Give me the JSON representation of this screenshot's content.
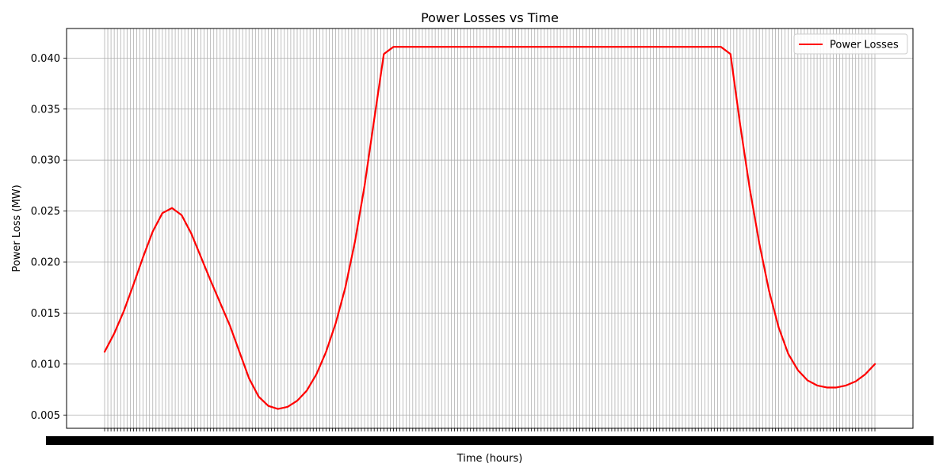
{
  "chart_data": {
    "type": "line",
    "title": "Power Losses vs Time",
    "xlabel": "Time (hours)",
    "ylabel": "Power Loss (MW)",
    "ylim": [
      0.0037,
      0.0429
    ],
    "yticks": [
      "0.005",
      "0.010",
      "0.015",
      "0.020",
      "0.025",
      "0.030",
      "0.035",
      "0.040"
    ],
    "grid": true,
    "legend_position": "top-right",
    "x_tick_count": 240,
    "series": [
      {
        "name": "Power Losses",
        "color": "#ff0000",
        "x": [
          0,
          12,
          24,
          36,
          48,
          60,
          72,
          84,
          96,
          108,
          120,
          132,
          144,
          156,
          168,
          180,
          192,
          204,
          216,
          228,
          240,
          252,
          264,
          276,
          288,
          300,
          312,
          324,
          336,
          348,
          360,
          372,
          384,
          396,
          408,
          420,
          432,
          444,
          456,
          468,
          480,
          492,
          504,
          516,
          528,
          540,
          552,
          564,
          576,
          588,
          600,
          612,
          624,
          636,
          648,
          660,
          672,
          684,
          696,
          708,
          720,
          732,
          744,
          756,
          768,
          780,
          792,
          804,
          816,
          828,
          840,
          852,
          864,
          876,
          888,
          900,
          912,
          924,
          936,
          948,
          960
        ],
        "values": [
          0.0112,
          0.013,
          0.0152,
          0.0178,
          0.0205,
          0.023,
          0.0248,
          0.0253,
          0.0246,
          0.0228,
          0.0205,
          0.0182,
          0.016,
          0.0138,
          0.0112,
          0.0086,
          0.0068,
          0.0059,
          0.0056,
          0.0058,
          0.0064,
          0.0074,
          0.009,
          0.0112,
          0.014,
          0.0175,
          0.022,
          0.0275,
          0.034,
          0.0404,
          0.0411,
          0.0411,
          0.0411,
          0.0411,
          0.0411,
          0.0411,
          0.0411,
          0.0411,
          0.0411,
          0.0411,
          0.0411,
          0.0411,
          0.0411,
          0.0411,
          0.0411,
          0.0411,
          0.0411,
          0.0411,
          0.0411,
          0.0411,
          0.0411,
          0.0411,
          0.0411,
          0.0411,
          0.0411,
          0.0411,
          0.0411,
          0.0411,
          0.0411,
          0.0411,
          0.0411,
          0.0411,
          0.0411,
          0.0411,
          0.0411,
          0.0404,
          0.0335,
          0.0272,
          0.0218,
          0.0172,
          0.0136,
          0.011,
          0.0094,
          0.0084,
          0.0079,
          0.0077,
          0.0077,
          0.0079,
          0.0083,
          0.009,
          0.01
        ]
      }
    ]
  }
}
